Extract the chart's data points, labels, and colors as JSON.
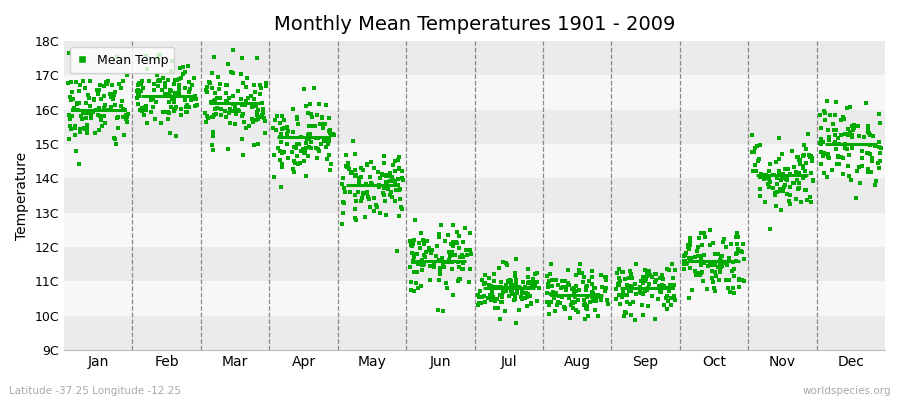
{
  "title": "Monthly Mean Temperatures 1901 - 2009",
  "ylabel": "Temperature",
  "xlabel_bottom_left": "Latitude -37.25 Longitude -12.25",
  "xlabel_bottom_right": "worldspecies.org",
  "ylim": [
    9,
    18
  ],
  "yticks": [
    9,
    10,
    11,
    12,
    13,
    14,
    15,
    16,
    17,
    18
  ],
  "ytick_labels": [
    "9C",
    "10C",
    "11C",
    "12C",
    "13C",
    "14C",
    "15C",
    "16C",
    "17C",
    "18C"
  ],
  "months": [
    "Jan",
    "Feb",
    "Mar",
    "Apr",
    "May",
    "Jun",
    "Jul",
    "Aug",
    "Sep",
    "Oct",
    "Nov",
    "Dec"
  ],
  "monthly_means": [
    16.0,
    16.4,
    16.2,
    15.2,
    13.8,
    11.6,
    10.8,
    10.6,
    10.8,
    11.6,
    14.1,
    15.0
  ],
  "dot_color": "#00aa00",
  "mean_line_color": "#00aa00",
  "background_color": "#ffffff",
  "band_color_dark": "#ebebeb",
  "band_color_light": "#f7f7f7",
  "title_fontsize": 14,
  "legend_label": "Mean Temp",
  "dot_size": 6,
  "n_years": 109,
  "seed": 42,
  "monthly_stds": [
    0.6,
    0.55,
    0.55,
    0.55,
    0.55,
    0.5,
    0.35,
    0.35,
    0.4,
    0.5,
    0.55,
    0.6
  ]
}
